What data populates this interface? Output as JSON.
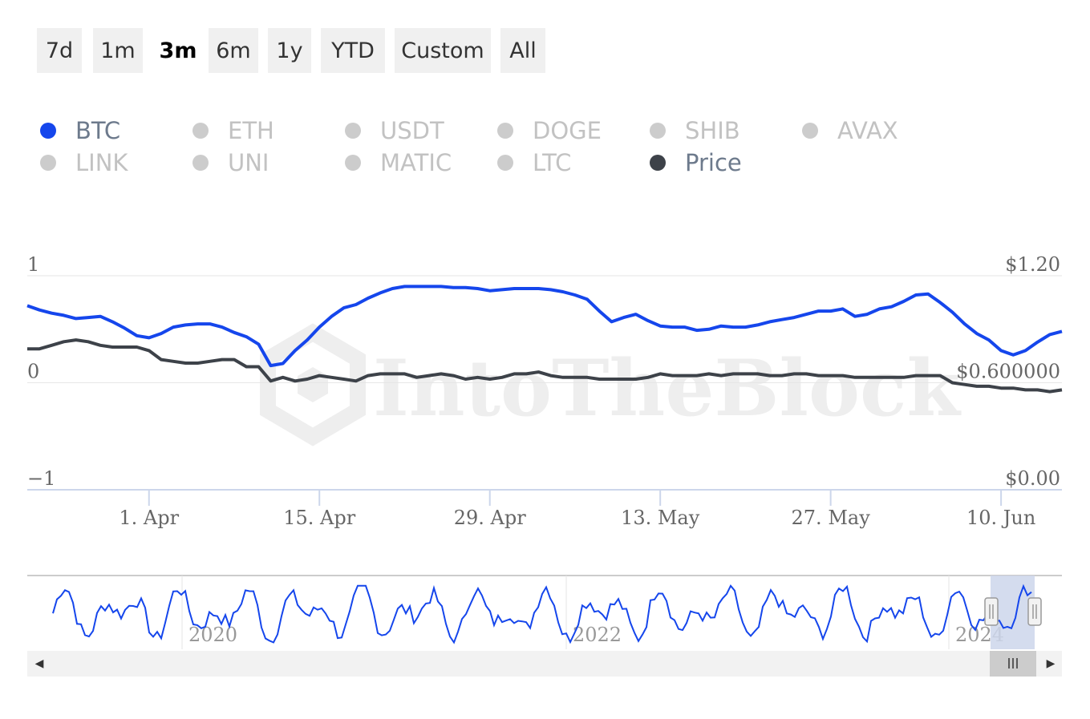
{
  "range_selector": {
    "buttons": [
      "7d",
      "1m",
      "3m",
      "6m",
      "1y",
      "YTD",
      "Custom",
      "All"
    ],
    "active": "3m"
  },
  "legend": {
    "items": [
      {
        "label": "BTC",
        "color": "#1546ec",
        "active": true
      },
      {
        "label": "ETH",
        "color": "#cccccc",
        "active": false
      },
      {
        "label": "USDT",
        "color": "#cccccc",
        "active": false
      },
      {
        "label": "DOGE",
        "color": "#cccccc",
        "active": false
      },
      {
        "label": "SHIB",
        "color": "#cccccc",
        "active": false
      },
      {
        "label": "AVAX",
        "color": "#cccccc",
        "active": false
      },
      {
        "label": "LINK",
        "color": "#cccccc",
        "active": false
      },
      {
        "label": "UNI",
        "color": "#cccccc",
        "active": false
      },
      {
        "label": "MATIC",
        "color": "#cccccc",
        "active": false
      },
      {
        "label": "LTC",
        "color": "#cccccc",
        "active": false
      },
      {
        "label": "Price",
        "color": "#3d4249",
        "active": true
      }
    ]
  },
  "watermark": "IntoTheBlock",
  "colors": {
    "btc": "#1546ec",
    "price": "#3d4249",
    "navigator_mask": "#ccd6eb"
  },
  "chart_data": {
    "type": "line",
    "x_ticks": [
      "1. Apr",
      "15. Apr",
      "29. Apr",
      "13. May",
      "27. May",
      "10. Jun"
    ],
    "x_tick_days": [
      10,
      24,
      38,
      52,
      66,
      80
    ],
    "x_range": [
      0,
      85
    ],
    "y_left_ticks": [
      "1",
      "0",
      "−1"
    ],
    "y_left_range": [
      -1,
      1
    ],
    "y_right_ticks": [
      "$1.20",
      "$0.600000",
      "$0.00"
    ],
    "y_right_range": [
      0,
      1.2
    ],
    "series": [
      {
        "name": "BTC",
        "axis": "left",
        "x": [
          0,
          1,
          2,
          3,
          4,
          5,
          6,
          7,
          8,
          9,
          10,
          11,
          12,
          13,
          14,
          15,
          16,
          17,
          18,
          19,
          20,
          21,
          22,
          23,
          24,
          25,
          26,
          27,
          28,
          29,
          30,
          31,
          32,
          33,
          34,
          35,
          36,
          37,
          38,
          39,
          40,
          41,
          42,
          43,
          44,
          45,
          46,
          47,
          48,
          49,
          50,
          51,
          52,
          53,
          54,
          55,
          56,
          57,
          58,
          59,
          60,
          61,
          62,
          63,
          64,
          65,
          66,
          67,
          68,
          69,
          70,
          71,
          72,
          73,
          74,
          75,
          76,
          77,
          78,
          79,
          80,
          81,
          82,
          83,
          84,
          85
        ],
        "y": [
          0.72,
          0.68,
          0.65,
          0.63,
          0.6,
          0.61,
          0.62,
          0.57,
          0.51,
          0.44,
          0.42,
          0.46,
          0.52,
          0.54,
          0.55,
          0.55,
          0.52,
          0.47,
          0.43,
          0.36,
          0.16,
          0.18,
          0.3,
          0.4,
          0.52,
          0.62,
          0.7,
          0.73,
          0.79,
          0.84,
          0.88,
          0.9,
          0.9,
          0.9,
          0.9,
          0.89,
          0.89,
          0.88,
          0.86,
          0.87,
          0.88,
          0.88,
          0.88,
          0.87,
          0.85,
          0.82,
          0.78,
          0.67,
          0.57,
          0.61,
          0.64,
          0.58,
          0.53,
          0.52,
          0.52,
          0.49,
          0.5,
          0.53,
          0.52,
          0.52,
          0.54,
          0.57,
          0.59,
          0.61,
          0.64,
          0.67,
          0.67,
          0.69,
          0.62,
          0.64,
          0.69,
          0.71,
          0.76,
          0.82,
          0.83,
          0.75,
          0.66,
          0.55,
          0.46,
          0.4,
          0.3,
          0.26,
          0.3,
          0.38,
          0.45,
          0.48
        ]
      },
      {
        "name": "Price",
        "axis": "right",
        "x": [
          0,
          1,
          2,
          3,
          4,
          5,
          6,
          7,
          8,
          9,
          10,
          11,
          12,
          13,
          14,
          15,
          16,
          17,
          18,
          19,
          20,
          21,
          22,
          23,
          24,
          25,
          26,
          27,
          28,
          29,
          30,
          31,
          32,
          33,
          34,
          35,
          36,
          37,
          38,
          39,
          40,
          41,
          42,
          43,
          44,
          45,
          46,
          47,
          48,
          49,
          50,
          51,
          52,
          53,
          54,
          55,
          56,
          57,
          58,
          59,
          60,
          61,
          62,
          63,
          64,
          65,
          66,
          67,
          68,
          69,
          70,
          71,
          72,
          73,
          74,
          75,
          76,
          77,
          78,
          79,
          80,
          81,
          82,
          83,
          84,
          85
        ],
        "y": [
          0.79,
          0.79,
          0.81,
          0.83,
          0.84,
          0.83,
          0.81,
          0.8,
          0.8,
          0.8,
          0.78,
          0.73,
          0.72,
          0.71,
          0.71,
          0.72,
          0.73,
          0.73,
          0.69,
          0.69,
          0.61,
          0.63,
          0.61,
          0.62,
          0.64,
          0.63,
          0.62,
          0.61,
          0.64,
          0.65,
          0.65,
          0.65,
          0.63,
          0.64,
          0.65,
          0.64,
          0.62,
          0.63,
          0.62,
          0.63,
          0.65,
          0.65,
          0.66,
          0.64,
          0.63,
          0.63,
          0.63,
          0.62,
          0.62,
          0.62,
          0.62,
          0.63,
          0.65,
          0.64,
          0.64,
          0.64,
          0.65,
          0.64,
          0.65,
          0.65,
          0.65,
          0.64,
          0.64,
          0.65,
          0.65,
          0.64,
          0.64,
          0.64,
          0.63,
          0.63,
          0.63,
          0.63,
          0.63,
          0.64,
          0.64,
          0.64,
          0.6,
          0.59,
          0.58,
          0.58,
          0.57,
          0.57,
          0.56,
          0.56,
          0.55,
          0.56
        ]
      }
    ],
    "navigator": {
      "x_labels": [
        "2020",
        "2022",
        "2024"
      ],
      "selection": "3m"
    },
    "grid": true
  }
}
